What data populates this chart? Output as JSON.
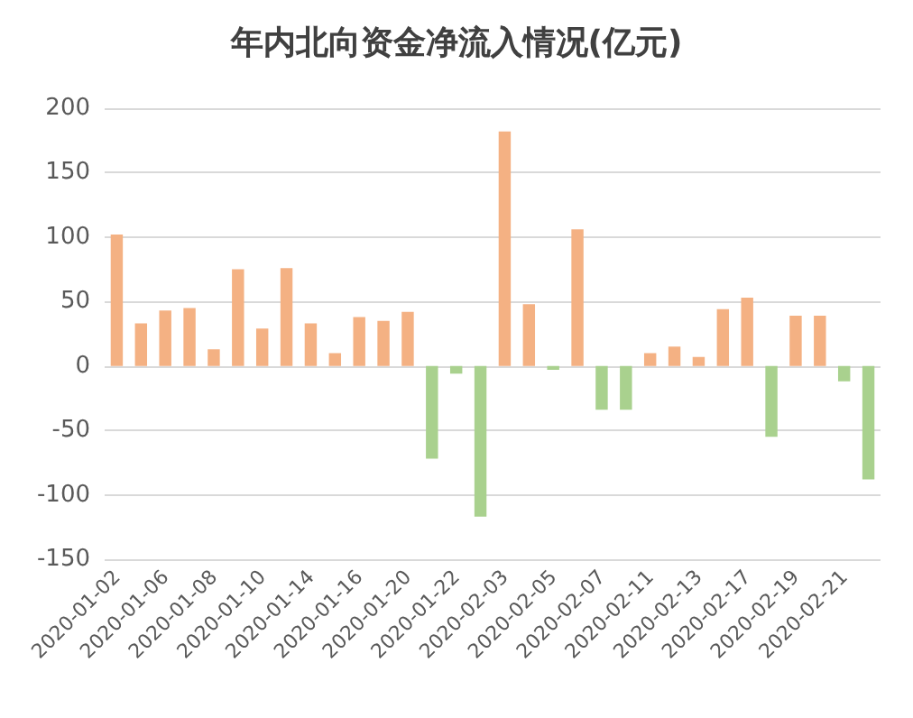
{
  "chart_data": {
    "type": "bar",
    "title": "年内北向资金净流入情况(亿元)",
    "categories": [
      "2020-01-02",
      null,
      "2020-01-06",
      null,
      "2020-01-08",
      null,
      "2020-01-10",
      null,
      "2020-01-14",
      null,
      "2020-01-16",
      null,
      "2020-01-20",
      null,
      "2020-01-22",
      null,
      "2020-02-03",
      null,
      "2020-02-05",
      null,
      "2020-02-07",
      null,
      "2020-02-11",
      null,
      "2020-02-13",
      null,
      "2020-02-17",
      null,
      "2020-02-19",
      null,
      "2020-02-21",
      null
    ],
    "values": [
      102,
      33,
      43,
      45,
      13,
      75,
      29,
      76,
      33,
      10,
      38,
      35,
      42,
      -72,
      -6,
      -117,
      182,
      48,
      -3,
      106,
      -34,
      -34,
      10,
      15,
      7,
      44,
      53,
      -55,
      39,
      39,
      -12,
      -88
    ],
    "colors": [
      "#f4b183",
      "#f4b183",
      "#f4b183",
      "#f4b183",
      "#f4b183",
      "#f4b183",
      "#f4b183",
      "#f4b183",
      "#f4b183",
      "#f4b183",
      "#f4b183",
      "#f4b183",
      "#f4b183",
      "#a9d18e",
      "#a9d18e",
      "#a9d18e",
      "#f4b183",
      "#f4b183",
      "#a9d18e",
      "#f4b183",
      "#a9d18e",
      "#a9d18e",
      "#f4b183",
      "#f4b183",
      "#f4b183",
      "#f4b183",
      "#f4b183",
      "#a9d18e",
      "#f4b183",
      "#f4b183",
      "#a9d18e",
      "#a9d18e"
    ],
    "ylim": [
      -150,
      200
    ],
    "yticks": [
      -150,
      -100,
      -50,
      0,
      50,
      100,
      150,
      200
    ],
    "grid": "y"
  }
}
